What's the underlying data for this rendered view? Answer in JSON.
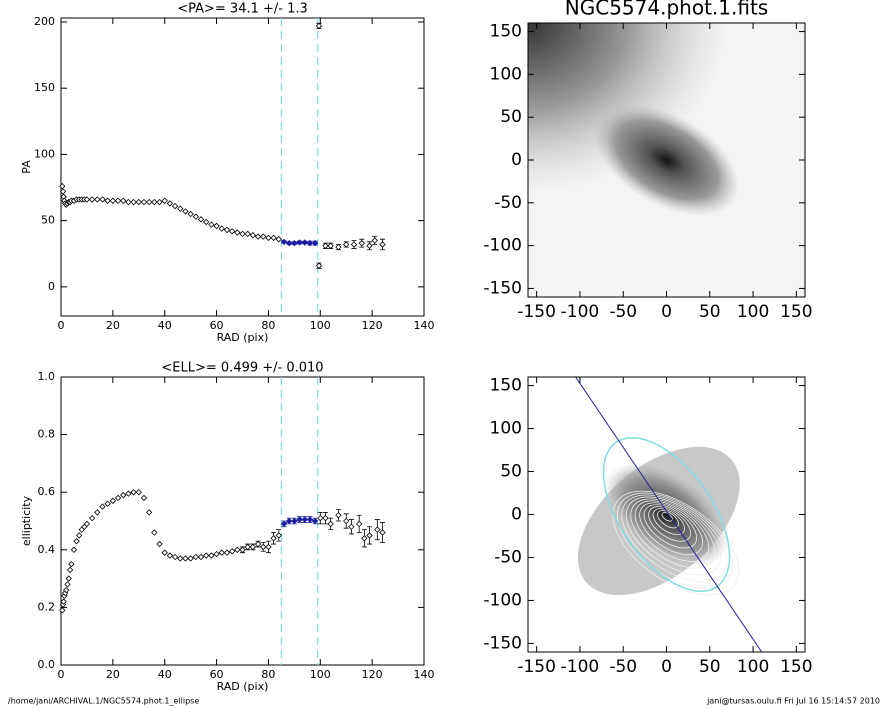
{
  "chart_data": [
    {
      "type": "scatter",
      "title": "<PA>=  34.1 +/-   1.3",
      "xlabel": "RAD (pix)",
      "ylabel": "PA",
      "xlim": [
        0,
        140
      ],
      "ylim": [
        -22,
        203
      ],
      "xticks": [
        0,
        20,
        40,
        60,
        80,
        100,
        120,
        140
      ],
      "yticks": [
        0,
        50,
        100,
        150,
        200
      ],
      "vlines": [
        85,
        99
      ],
      "vline_color": "#7fdede",
      "series": [
        {
          "color": "#000000",
          "x": [
            0.5,
            0.8,
            1,
            1.3,
            1.6,
            2,
            2.5,
            3,
            3.5,
            4,
            5,
            6,
            7,
            8,
            9,
            10,
            12,
            14,
            16,
            18,
            20,
            22,
            24,
            26,
            28,
            30,
            32,
            34,
            36,
            38,
            40,
            42,
            44,
            46,
            48,
            50,
            52,
            54,
            56,
            58,
            60,
            62,
            64,
            66,
            68,
            70,
            72,
            74,
            76,
            78,
            80,
            82,
            84
          ],
          "values": [
            76,
            72,
            68,
            65,
            63,
            62,
            63,
            64,
            64,
            65,
            65,
            66,
            66,
            66,
            66,
            66,
            66,
            66,
            66,
            65,
            65,
            65,
            65,
            64,
            64,
            64,
            64,
            64,
            64,
            64,
            65,
            63,
            61,
            59,
            57,
            55,
            53,
            51,
            49,
            47,
            46,
            44,
            43,
            42,
            41,
            40,
            40,
            39,
            38,
            38,
            37,
            37,
            36
          ]
        },
        {
          "color": "#1c1ca0",
          "line": true,
          "x": [
            86,
            88,
            90,
            92,
            94,
            96,
            98
          ],
          "values": [
            34,
            33,
            33,
            33.5,
            33.5,
            33,
            33
          ],
          "errors": [
            1,
            1,
            1,
            1,
            1,
            1.5,
            1.5
          ]
        },
        {
          "color": "#000000",
          "x": [
            99.5,
            99.5,
            102,
            104,
            107,
            110,
            113,
            116,
            119,
            121,
            124
          ],
          "values": [
            197,
            16,
            31,
            31,
            30,
            32,
            32,
            33,
            31,
            35,
            32
          ],
          "errors": [
            2,
            2,
            2,
            2,
            2,
            2,
            3,
            3,
            3,
            3,
            4
          ]
        }
      ]
    },
    {
      "type": "scatter",
      "title": "<ELL>= 0.499 +/-  0.010",
      "xlabel": "RAD (pix)",
      "ylabel": "ellipticity",
      "xlim": [
        0,
        140
      ],
      "ylim": [
        0,
        1
      ],
      "xticks": [
        0,
        20,
        40,
        60,
        80,
        100,
        120,
        140
      ],
      "yticks": [
        {
          "value": 0,
          "label": "0.0"
        },
        {
          "value": 0.2,
          "label": "0.2"
        },
        {
          "value": 0.4,
          "label": "0.4"
        },
        {
          "value": 0.6,
          "label": "0.6"
        },
        {
          "value": 0.8,
          "label": "0.8"
        },
        {
          "value": 1,
          "label": "1.0"
        }
      ],
      "vlines": [
        85,
        99
      ],
      "vline_color": "#7fdede",
      "series": [
        {
          "color": "#000000",
          "x": [
            0.5,
            0.8,
            1,
            1.3,
            1.6,
            2,
            2.5,
            3,
            3.5,
            4,
            5,
            6,
            7,
            8,
            9,
            10,
            12,
            14,
            16,
            18,
            20,
            22,
            24,
            26,
            28,
            30,
            32,
            34,
            36,
            38,
            40,
            42,
            44,
            46,
            48,
            50,
            52,
            54,
            56,
            58,
            60,
            62,
            64,
            66,
            68
          ],
          "values": [
            0.19,
            0.21,
            0.22,
            0.24,
            0.25,
            0.26,
            0.28,
            0.3,
            0.33,
            0.35,
            0.4,
            0.43,
            0.45,
            0.47,
            0.48,
            0.49,
            0.51,
            0.53,
            0.55,
            0.56,
            0.57,
            0.58,
            0.59,
            0.595,
            0.6,
            0.6,
            0.58,
            0.53,
            0.46,
            0.42,
            0.39,
            0.38,
            0.375,
            0.37,
            0.37,
            0.37,
            0.375,
            0.375,
            0.38,
            0.38,
            0.385,
            0.39,
            0.39,
            0.395,
            0.4
          ]
        },
        {
          "color": "#000000",
          "x": [
            70,
            72,
            74,
            76,
            78,
            80,
            82,
            84
          ],
          "values": [
            0.4,
            0.41,
            0.41,
            0.42,
            0.41,
            0.41,
            0.44,
            0.45
          ],
          "errors": [
            0.01,
            0.01,
            0.01,
            0.01,
            0.015,
            0.02,
            0.02,
            0.02
          ]
        },
        {
          "color": "#1c1ca0",
          "line": true,
          "x": [
            86,
            88,
            90,
            92,
            94,
            96,
            98
          ],
          "values": [
            0.49,
            0.5,
            0.5,
            0.505,
            0.505,
            0.505,
            0.5
          ],
          "errors": [
            0.01,
            0.01,
            0.01,
            0.01,
            0.01,
            0.01,
            0.01
          ]
        },
        {
          "color": "#000000",
          "x": [
            100,
            102,
            104,
            107,
            110,
            112,
            115,
            117,
            119,
            122,
            124
          ],
          "values": [
            0.51,
            0.51,
            0.49,
            0.52,
            0.5,
            0.48,
            0.49,
            0.44,
            0.45,
            0.47,
            0.46
          ],
          "errors": [
            0.02,
            0.02,
            0.02,
            0.02,
            0.025,
            0.025,
            0.03,
            0.03,
            0.03,
            0.035,
            0.035
          ]
        }
      ]
    },
    {
      "type": "image",
      "title": "NGC5574.phot.1.fits",
      "xlim": [
        -160,
        160
      ],
      "ylim": [
        -160,
        160
      ],
      "xticks": [
        -150,
        -100,
        -50,
        0,
        50,
        100,
        150
      ],
      "yticks": [
        -150,
        -100,
        -50,
        0,
        50,
        100,
        150
      ]
    },
    {
      "type": "image",
      "xlim": [
        -160,
        160
      ],
      "ylim": [
        -160,
        160
      ],
      "xticks": [
        -150,
        -100,
        -50,
        0,
        50,
        100,
        150
      ],
      "yticks": [
        -150,
        -100,
        -50,
        0,
        50,
        100,
        150
      ],
      "contours": true,
      "series": [
        {
          "color": "#2020a0",
          "x": [
            -105,
            110
          ],
          "values": [
            160,
            -160
          ]
        }
      ]
    }
  ],
  "footer": {
    "left": "/home/jani/ARCHIVAL.1/NGC5574.phot.1_ellipse",
    "right": "jani@tursas.oulu.fi  Fri Jul 16 15:14:57 2010"
  }
}
